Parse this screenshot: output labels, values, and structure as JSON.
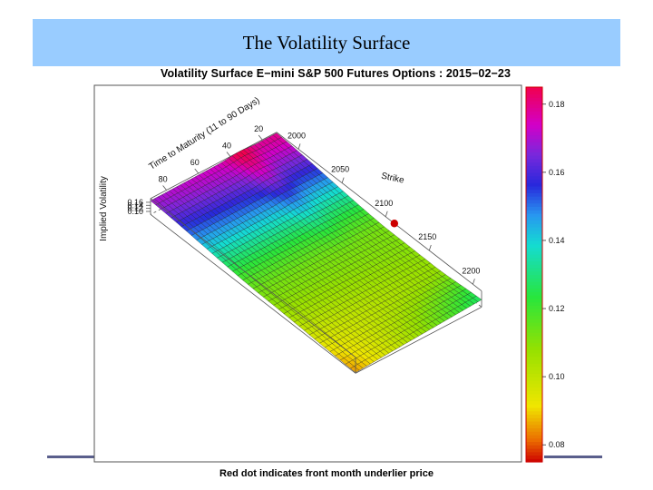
{
  "slide": {
    "title": "The Volatility Surface"
  },
  "chart_data": {
    "type": "surface3d",
    "title": "Volatility Surface E−mini S&P 500 Futures Options : 2015−02−23",
    "caption": "Red dot indicates front month underlier price",
    "xlabel": "Strike",
    "ylabel": "Time to Maturity (11 to 90 Days)",
    "zlabel": "Implied Volatility",
    "x_ticks": [
      2000,
      2050,
      2100,
      2150,
      2200
    ],
    "y_ticks": [
      20,
      40,
      60,
      80
    ],
    "z_ticks": [
      0.1,
      0.12,
      0.14,
      0.16
    ],
    "x_range": [
      1975,
      2210
    ],
    "y_range": [
      11,
      90
    ],
    "z_range": [
      0.08,
      0.185
    ],
    "underlier_price": 2110,
    "colorbar": {
      "min": 0.075,
      "max": 0.185,
      "ticks": [
        0.08,
        0.1,
        0.12,
        0.14,
        0.16,
        0.18
      ]
    },
    "colors": {
      "frame": "#555555",
      "mesh": "#1a1a1a",
      "dot": "#cc0000",
      "colorbar_border": "#cc0000"
    },
    "surface_samples": [
      {
        "maturity": 11,
        "strike": 1975,
        "iv": 0.18
      },
      {
        "maturity": 11,
        "strike": 2100,
        "iv": 0.112
      },
      {
        "maturity": 11,
        "strike": 2160,
        "iv": 0.108
      },
      {
        "maturity": 11,
        "strike": 2210,
        "iv": 0.128
      },
      {
        "maturity": 90,
        "strike": 1975,
        "iv": 0.17
      },
      {
        "maturity": 90,
        "strike": 2100,
        "iv": 0.112
      },
      {
        "maturity": 90,
        "strike": 2210,
        "iv": 0.085
      }
    ]
  }
}
